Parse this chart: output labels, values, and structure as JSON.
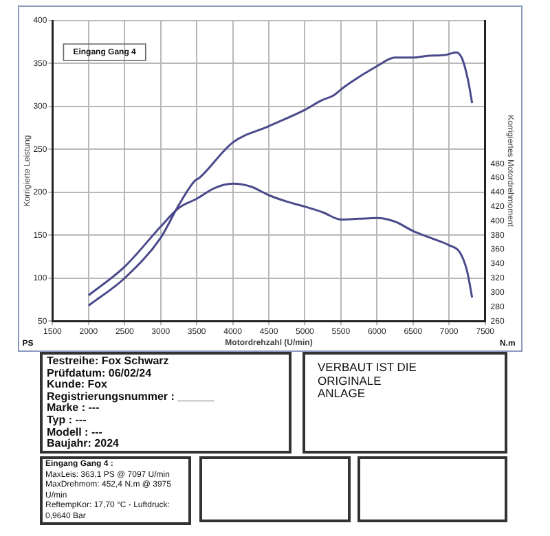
{
  "chart_data": {
    "type": "line",
    "xlabel": "Motordrehzahl (U/min)",
    "ylabel": "Korrigierte Leistung",
    "y2label": "Korrigiertes Motordrehmoment",
    "xlim": [
      1500,
      7500
    ],
    "xticks": [
      1500,
      2000,
      2500,
      3000,
      3500,
      4000,
      4500,
      5000,
      5500,
      6000,
      6500,
      7000,
      7500
    ],
    "ylim": [
      50,
      400
    ],
    "yticks": [
      50,
      100,
      150,
      200,
      250,
      300,
      350,
      400
    ],
    "y2lim": [
      260,
      680
    ],
    "y2ticks": [
      260,
      280,
      300,
      320,
      340,
      360,
      380,
      400,
      420,
      440,
      460,
      480
    ],
    "grid": true,
    "legend": false,
    "marker": "none",
    "line_style": "solid",
    "series": [
      {
        "color": "#4a4a8c",
        "x": [
          2000,
          2500,
          3000,
          3250,
          3470,
          3540,
          4000,
          4500,
          5000,
          5230,
          5400,
          5550,
          6000,
          6250,
          6500,
          6700,
          6950,
          7100,
          7180,
          7260,
          7320
        ],
        "values": [
          68,
          100,
          147,
          185,
          213,
          217,
          258,
          277,
          296,
          307,
          313,
          323,
          347,
          357,
          357,
          359,
          360,
          363,
          356,
          332,
          304
        ]
      },
      {
        "color": "#4a4a8c",
        "axis": "y2",
        "x": [
          2000,
          2500,
          3000,
          3250,
          3500,
          3750,
          4000,
          4250,
          4500,
          4750,
          5000,
          5250,
          5500,
          5750,
          6000,
          6250,
          6500,
          6750,
          7000,
          7150,
          7250,
          7320
        ],
        "values": [
          296,
          336,
          392,
          418,
          431,
          446,
          452,
          448,
          436,
          427,
          420,
          412,
          402,
          403,
          404,
          399,
          386,
          376,
          366,
          356,
          330,
          293
        ]
      }
    ],
    "annotations": [
      "Eingang Gang 4",
      "PS",
      "N.m",
      "Testreihe: Fox Schwarz\nPrüfdatum: 06/02/24\nKunde: Fox\nRegistrierungsnummer  : ______\nMarke  : ---\nTyp  : ---\nModell  : ---\nBaujahr: 2024",
      "VERBAUT IST DIE\nORIGINALE\nANLAGE",
      "Eingang Gang 4  :\nMaxLeis: 363,1 PS @ 7097 U/min\nMaxDrehmom: 452,4 N.m @ 3975 U/min\nReftempKor: 17,70 °C - Luftdruck: 0,9640 Bar"
    ]
  }
}
